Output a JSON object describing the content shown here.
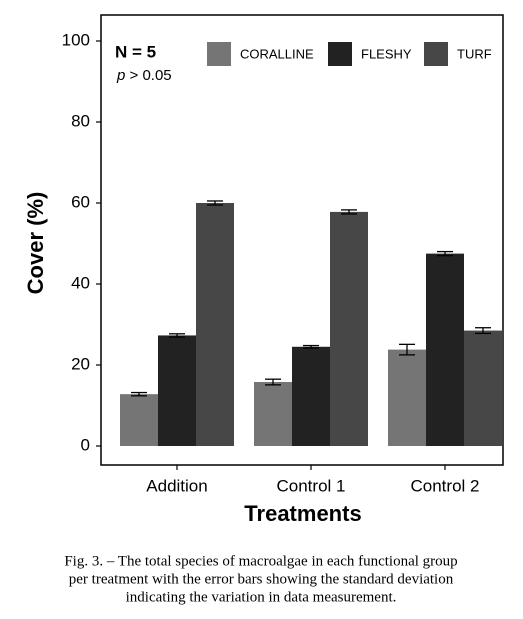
{
  "chart_data": {
    "type": "bar",
    "y_label": "Cover (%)",
    "x_label": "Treatments",
    "n_label": "N = 5",
    "p_symbol": "p",
    "p_text": "> 0.05",
    "categories": [
      "Addition",
      "Control 1",
      "Control 2"
    ],
    "series": [
      {
        "name": "CORALLINE",
        "color": "#757575",
        "values": [
          12.8,
          15.8,
          23.8
        ],
        "errors": [
          0.4,
          0.7,
          1.3
        ]
      },
      {
        "name": "FLESHY",
        "color": "#222222",
        "values": [
          27.3,
          24.5,
          47.5
        ],
        "errors": [
          0.4,
          0.3,
          0.5
        ]
      },
      {
        "name": "TURF",
        "color": "#474747",
        "values": [
          60,
          57.8,
          28.5
        ],
        "errors": [
          0.5,
          0.5,
          0.7
        ]
      }
    ],
    "ylim": [
      0,
      100
    ],
    "yticks": [
      0,
      20,
      40,
      60,
      80,
      100
    ],
    "grid": false
  },
  "caption": [
    "Fig. 3. – The total species of macroalgae in each functional group",
    "per treatment with the error bars showing the standard deviation",
    "indicating the variation in data measurement."
  ]
}
